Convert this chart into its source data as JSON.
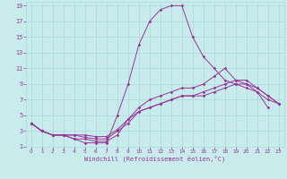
{
  "xlabel": "Windchill (Refroidissement éolien,°C)",
  "bg_color": "#c8ecec",
  "grid_color": "#a8d8d8",
  "line_color": "#993399",
  "xlim": [
    -0.5,
    23.5
  ],
  "ylim": [
    1,
    19.5
  ],
  "xticks": [
    0,
    1,
    2,
    3,
    4,
    5,
    6,
    7,
    8,
    9,
    10,
    11,
    12,
    13,
    14,
    15,
    16,
    17,
    18,
    19,
    20,
    21,
    22,
    23
  ],
  "yticks": [
    1,
    3,
    5,
    7,
    9,
    11,
    13,
    15,
    17,
    19
  ],
  "lines": [
    {
      "x": [
        0,
        1,
        2,
        3,
        4,
        5,
        6,
        7,
        8,
        9,
        10,
        11,
        12,
        13,
        14,
        15,
        16,
        17,
        18,
        19,
        20,
        21,
        22
      ],
      "y": [
        4,
        3,
        2.5,
        2.5,
        2,
        1.5,
        1.5,
        1.5,
        5,
        9,
        14,
        17,
        18.5,
        19,
        19,
        15,
        12.5,
        11,
        9.5,
        9,
        8.5,
        8,
        6
      ]
    },
    {
      "x": [
        0,
        1,
        2,
        3,
        4,
        5,
        6,
        7,
        8,
        9,
        10,
        11,
        12,
        13,
        14,
        15,
        16,
        17,
        18,
        19,
        20,
        21,
        22,
        23
      ],
      "y": [
        4,
        3,
        2.5,
        2.5,
        2,
        2,
        1.7,
        1.7,
        2.5,
        4.5,
        6,
        7,
        7.5,
        8,
        8.5,
        8.5,
        9,
        10,
        11,
        9.5,
        9,
        8,
        7,
        6.5
      ]
    },
    {
      "x": [
        0,
        1,
        2,
        3,
        4,
        5,
        6,
        7,
        8,
        9,
        10,
        11,
        12,
        13,
        14,
        15,
        16,
        17,
        18,
        19,
        20,
        21,
        22,
        23
      ],
      "y": [
        4,
        3,
        2.5,
        2.5,
        2.5,
        2.2,
        2,
        2,
        3,
        4,
        5.5,
        6,
        6.5,
        7,
        7.5,
        7.5,
        8,
        8.5,
        9,
        9.5,
        9.5,
        8.5,
        7.5,
        6.5
      ]
    },
    {
      "x": [
        0,
        1,
        2,
        3,
        4,
        5,
        6,
        7,
        8,
        9,
        10,
        11,
        12,
        13,
        14,
        15,
        16,
        17,
        18,
        19,
        20,
        21,
        22,
        23
      ],
      "y": [
        4,
        3,
        2.5,
        2.5,
        2.5,
        2.5,
        2.3,
        2.3,
        3.2,
        4.5,
        5.5,
        6,
        6.5,
        7,
        7.5,
        7.5,
        7.5,
        8,
        8.5,
        9,
        9,
        8.5,
        7.5,
        6.5
      ]
    }
  ]
}
